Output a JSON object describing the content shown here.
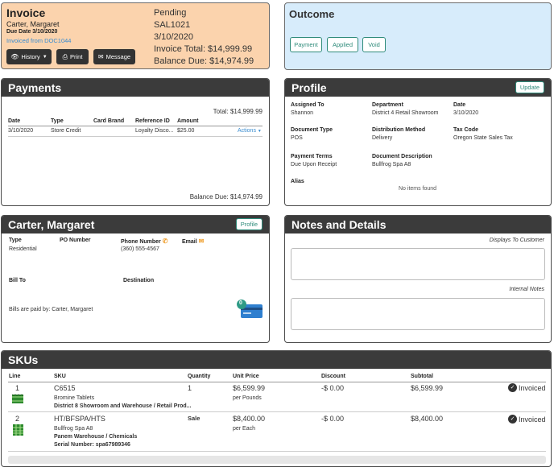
{
  "invoice": {
    "title": "Invoice",
    "customer": "Carter, Margaret",
    "due_date": "Due Date 3/10/2020",
    "invoiced_from": "Invoiced from DOC1044",
    "status": "Pending",
    "number": "SAL1021",
    "date": "3/10/2020",
    "total": "Invoice Total: $14,999.99",
    "balance": "Balance Due: $14,974.99",
    "buttons": {
      "history": "History",
      "print": "Print",
      "message": "Message"
    }
  },
  "outcome": {
    "title": "Outcome",
    "buttons": {
      "payment": "Payment",
      "applied": "Applied",
      "void": "Void"
    }
  },
  "payments": {
    "title": "Payments",
    "total": "Total: $14,999.99",
    "columns": [
      "Date",
      "Type",
      "Card Brand",
      "Reference ID",
      "Amount"
    ],
    "rows": [
      {
        "date": "3/10/2020",
        "type": "Store Credit",
        "card_brand": "",
        "reference": "Loyalty Disco...",
        "amount": "$25.00",
        "actions": "Actions"
      }
    ],
    "balance": "Balance Due: $14,974.99"
  },
  "profile": {
    "title": "Profile",
    "update": "Update",
    "assigned_to": {
      "label": "Assigned To",
      "value": "Shannon"
    },
    "department": {
      "label": "Department",
      "value": "District 4 Retail Showroom"
    },
    "date": {
      "label": "Date",
      "value": "3/10/2020"
    },
    "document_type": {
      "label": "Document Type",
      "value": "POS"
    },
    "distribution_method": {
      "label": "Distribution Method",
      "value": "Delivery"
    },
    "tax_code": {
      "label": "Tax Code",
      "value": "Oregon State Sales Tax"
    },
    "payment_terms": {
      "label": "Payment Terms",
      "value": "Due Upon Receipt"
    },
    "document_description": {
      "label": "Document Description",
      "value": "Bullfrog Spa A8"
    },
    "alias": {
      "label": "Alias",
      "value": "No items found"
    }
  },
  "customer": {
    "title": "Carter, Margaret",
    "profile_btn": "Profile",
    "type": {
      "label": "Type",
      "value": "Residential"
    },
    "po_number": {
      "label": "PO Number",
      "value": ""
    },
    "phone": {
      "label": "Phone Number",
      "value": "(360) 555-4567"
    },
    "email": {
      "label": "Email",
      "value": ""
    },
    "bill_to": {
      "label": "Bill To"
    },
    "destination": {
      "label": "Destination"
    },
    "bills_paid_by": "Bills are paid by: Carter, Margaret",
    "card_badge": "0"
  },
  "notes": {
    "title": "Notes and Details",
    "customer_label": "Displays To Customer",
    "internal_label": "Internal Notes"
  },
  "skus": {
    "title": "SKUs",
    "columns": [
      "Line",
      "SKU",
      "Quantity",
      "Unit Price",
      "Discount",
      "Subtotal"
    ],
    "rows": [
      {
        "line": "1",
        "sku": "C6515",
        "name": "Bromine Tablets",
        "location": "District 8 Showroom and Warehouse / Retail Prod...",
        "serial": "",
        "quantity": "1",
        "unit_price": "$6,599.99",
        "unit": "per Pounds",
        "discount": "-$ 0.00",
        "subtotal": "$6,599.99",
        "status": "Invoiced"
      },
      {
        "line": "2",
        "sku": "HT/BFSPA/HTS",
        "name": "Bullfrog Spa A8",
        "location": "Panem Warehouse / Chemicals",
        "serial": "Serial Number: spa67989346",
        "quantity": "Sale",
        "unit_price": "$8,400.00",
        "unit": "per Each",
        "discount": "-$ 0.00",
        "subtotal": "$8,400.00",
        "status": "Invoiced"
      }
    ]
  },
  "colors": {
    "accent": "#2e8b7a",
    "invoice_bg": "#fbd3ad",
    "outcome_bg": "#d7ecfb",
    "header_bg": "#3b3b3b",
    "link": "#3a8ccf"
  },
  "icons": [
    "history-icon",
    "print-icon",
    "message-icon",
    "phone-icon",
    "email-icon",
    "credit-card-icon",
    "check-circle-icon",
    "tablet-product-icon",
    "spa-product-icon"
  ]
}
